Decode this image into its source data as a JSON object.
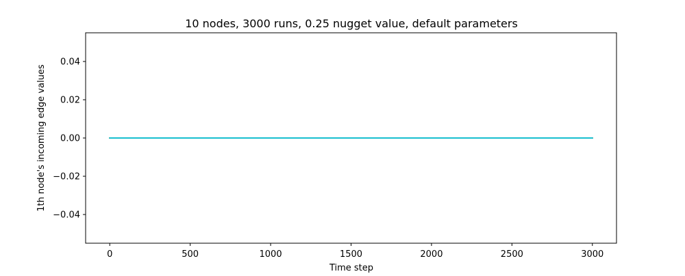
{
  "chart_data": {
    "type": "line",
    "title": "10 nodes, 3000 runs, 0.25 nugget value, default parameters",
    "xlabel": "Time step",
    "ylabel": "1th node's incoming edge values",
    "xlim": [
      -150,
      3150
    ],
    "ylim": [
      -0.055,
      0.055
    ],
    "x_ticks": [
      0,
      500,
      1000,
      1500,
      2000,
      2500,
      3000
    ],
    "x_tick_labels": [
      "0",
      "500",
      "1000",
      "1500",
      "2000",
      "2500",
      "3000"
    ],
    "y_ticks": [
      -0.04,
      -0.02,
      0.0,
      0.02,
      0.04
    ],
    "y_tick_labels": [
      "−0.04",
      "−0.02",
      "0.00",
      "0.02",
      "0.04"
    ],
    "grid": false,
    "legend": "none",
    "series": [
      {
        "color": "#1f77b4",
        "x": [
          0,
          3000
        ],
        "y": [
          0,
          0
        ]
      },
      {
        "color": "#ff7f0e",
        "x": [
          0,
          3000
        ],
        "y": [
          0,
          0
        ]
      },
      {
        "color": "#2ca02c",
        "x": [
          0,
          3000
        ],
        "y": [
          0,
          0
        ]
      },
      {
        "color": "#d62728",
        "x": [
          0,
          3000
        ],
        "y": [
          0,
          0
        ]
      },
      {
        "color": "#9467bd",
        "x": [
          0,
          3000
        ],
        "y": [
          0,
          0
        ]
      },
      {
        "color": "#8c564b",
        "x": [
          0,
          3000
        ],
        "y": [
          0,
          0
        ]
      },
      {
        "color": "#e377c2",
        "x": [
          0,
          3000
        ],
        "y": [
          0,
          0
        ]
      },
      {
        "color": "#7f7f7f",
        "x": [
          0,
          3000
        ],
        "y": [
          0,
          0
        ]
      },
      {
        "color": "#bcbd22",
        "x": [
          0,
          3000
        ],
        "y": [
          0,
          0
        ]
      },
      {
        "color": "#17becf",
        "x": [
          0,
          3000
        ],
        "y": [
          0,
          0
        ]
      }
    ]
  }
}
